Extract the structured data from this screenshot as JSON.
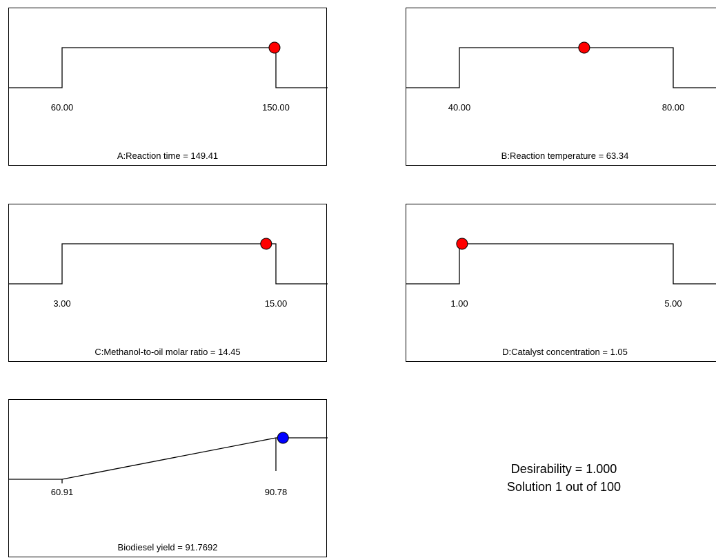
{
  "chart_data": [
    {
      "type": "line",
      "title": "A:Reaction time = 149.41",
      "range_low": 60.0,
      "range_high": 150.0,
      "tick_labels": [
        "60.00",
        "150.00"
      ],
      "shape": "in-range",
      "current": 149.41,
      "point_color": "#ff0000"
    },
    {
      "type": "line",
      "title": "B:Reaction temperature = 63.34",
      "range_low": 40.0,
      "range_high": 80.0,
      "tick_labels": [
        "40.00",
        "80.00"
      ],
      "shape": "in-range",
      "current": 63.34,
      "point_color": "#ff0000"
    },
    {
      "type": "line",
      "title": "C:Methanol-to-oil molar ratio = 14.45",
      "range_low": 3.0,
      "range_high": 15.0,
      "tick_labels": [
        "3.00",
        "15.00"
      ],
      "shape": "in-range",
      "current": 14.45,
      "point_color": "#ff0000"
    },
    {
      "type": "line",
      "title": "D:Catalyst concentration = 1.05",
      "range_low": 1.0,
      "range_high": 5.0,
      "tick_labels": [
        "1.00",
        "5.00"
      ],
      "shape": "in-range",
      "current": 1.05,
      "point_color": "#ff0000"
    },
    {
      "type": "line",
      "title": "Biodiesel yield = 91.7692",
      "range_low": 60.91,
      "range_high": 90.78,
      "tick_labels": [
        "60.91",
        "90.78"
      ],
      "shape": "maximize",
      "current": 91.7692,
      "point_color": "#0000ff"
    }
  ],
  "summary": {
    "desirability": "Desirability = 1.000",
    "solution": "Solution 1 out of 100"
  }
}
